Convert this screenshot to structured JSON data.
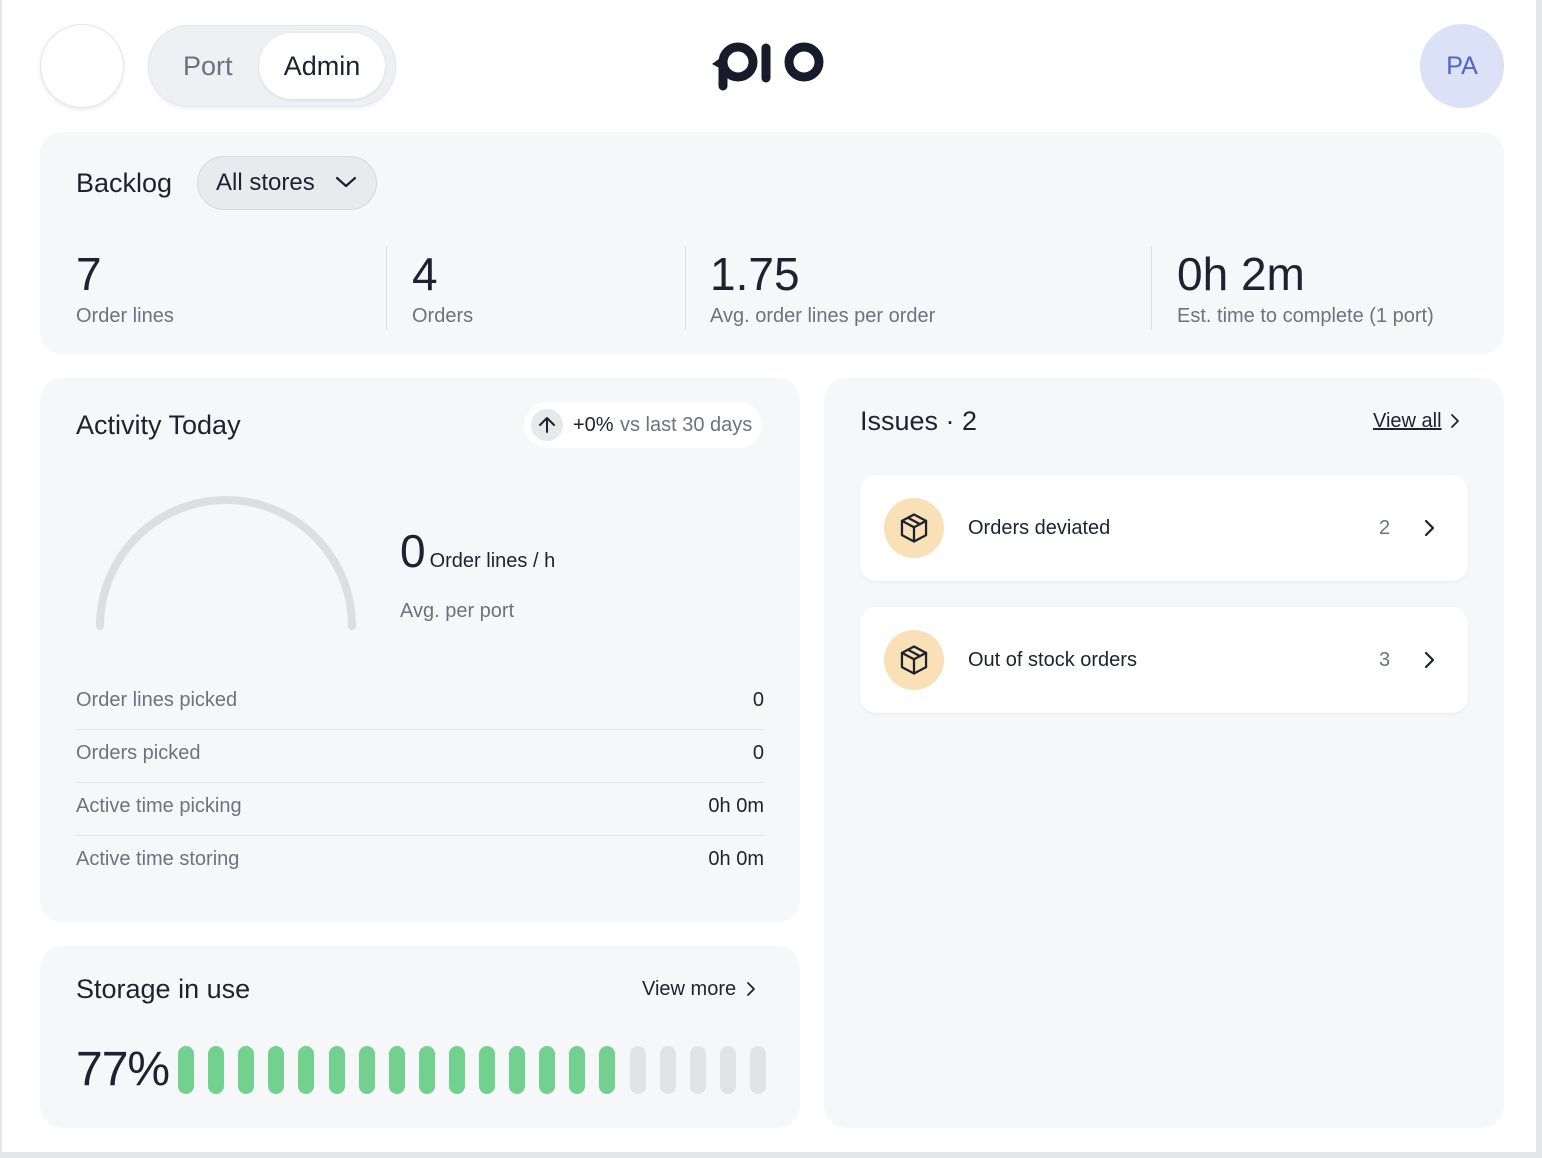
{
  "header": {
    "mode_toggle": {
      "options": [
        "Port",
        "Admin"
      ],
      "selected": "Admin"
    },
    "avatar_initials": "PA",
    "colors": {
      "avatar_bg": "#dbe1f7",
      "avatar_text": "#4d65c9"
    }
  },
  "backlog": {
    "title": "Backlog",
    "store_filter": "All stores",
    "metrics": [
      {
        "value": "7",
        "label": "Order lines"
      },
      {
        "value": "4",
        "label": "Orders"
      },
      {
        "value": "1.75",
        "label": "Avg. order lines per order"
      },
      {
        "value": "0h 2m",
        "label": "Est. time to complete (1 port)"
      }
    ]
  },
  "activity": {
    "title": "Activity Today",
    "trend": {
      "change": "+0%",
      "comparison": "vs last 30 days",
      "icon": "arrow-up-icon"
    },
    "gauge_fill": 0,
    "rate": {
      "value": "0",
      "unit": "Order lines / h",
      "sub": "Avg. per port"
    },
    "stats": [
      {
        "label": "Order lines picked",
        "value": "0"
      },
      {
        "label": "Orders picked",
        "value": "0"
      },
      {
        "label": "Active time picking",
        "value": "0h 0m"
      },
      {
        "label": "Active time storing",
        "value": "0h 0m"
      }
    ]
  },
  "storage": {
    "title": "Storage in use",
    "view_more": "View more",
    "percent": "77%",
    "segments_total": 20,
    "segments_filled": 15,
    "colors": {
      "filled": "#72d18f",
      "empty": "#e1e3e6"
    }
  },
  "issues": {
    "title": "Issues · 2",
    "view_all": "View all",
    "items": [
      {
        "label": "Orders deviated",
        "count": "2",
        "icon": "package-icon"
      },
      {
        "label": "Out of stock orders",
        "count": "3",
        "icon": "package-icon"
      }
    ],
    "colors": {
      "icon_bg": "#f9e0b6"
    }
  }
}
